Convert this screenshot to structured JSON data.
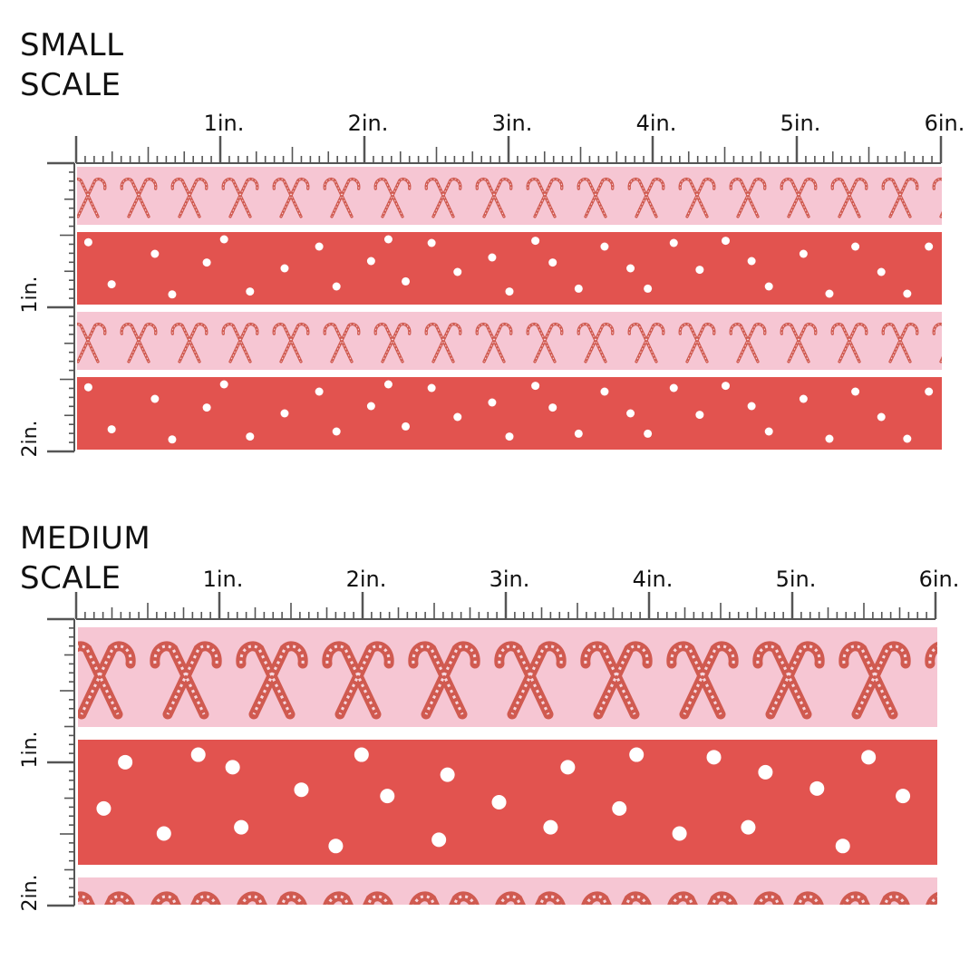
{
  "colors": {
    "pink": "#f6c6d3",
    "red": "#e2534f",
    "candy": "#d05a50",
    "dot": "#ffffff",
    "ruler": "#555555"
  },
  "sections": [
    {
      "title_line1": "SMALL",
      "title_line2": "SCALE",
      "h_ruler_labels": [
        "1in.",
        "2in.",
        "3in.",
        "4in.",
        "5in.",
        "6in."
      ],
      "v_ruler_labels": [
        "1in.",
        "2in."
      ],
      "stripes": [
        "candy-cane",
        "dots",
        "candy-cane",
        "dots"
      ]
    },
    {
      "title_line1": "MEDIUM",
      "title_line2": "SCALE",
      "h_ruler_labels": [
        "1in.",
        "2in.",
        "3in.",
        "4in.",
        "5in.",
        "6in."
      ],
      "v_ruler_labels": [
        "1in.",
        "2in."
      ],
      "stripes": [
        "candy-cane",
        "dots",
        "candy-cane"
      ]
    }
  ]
}
